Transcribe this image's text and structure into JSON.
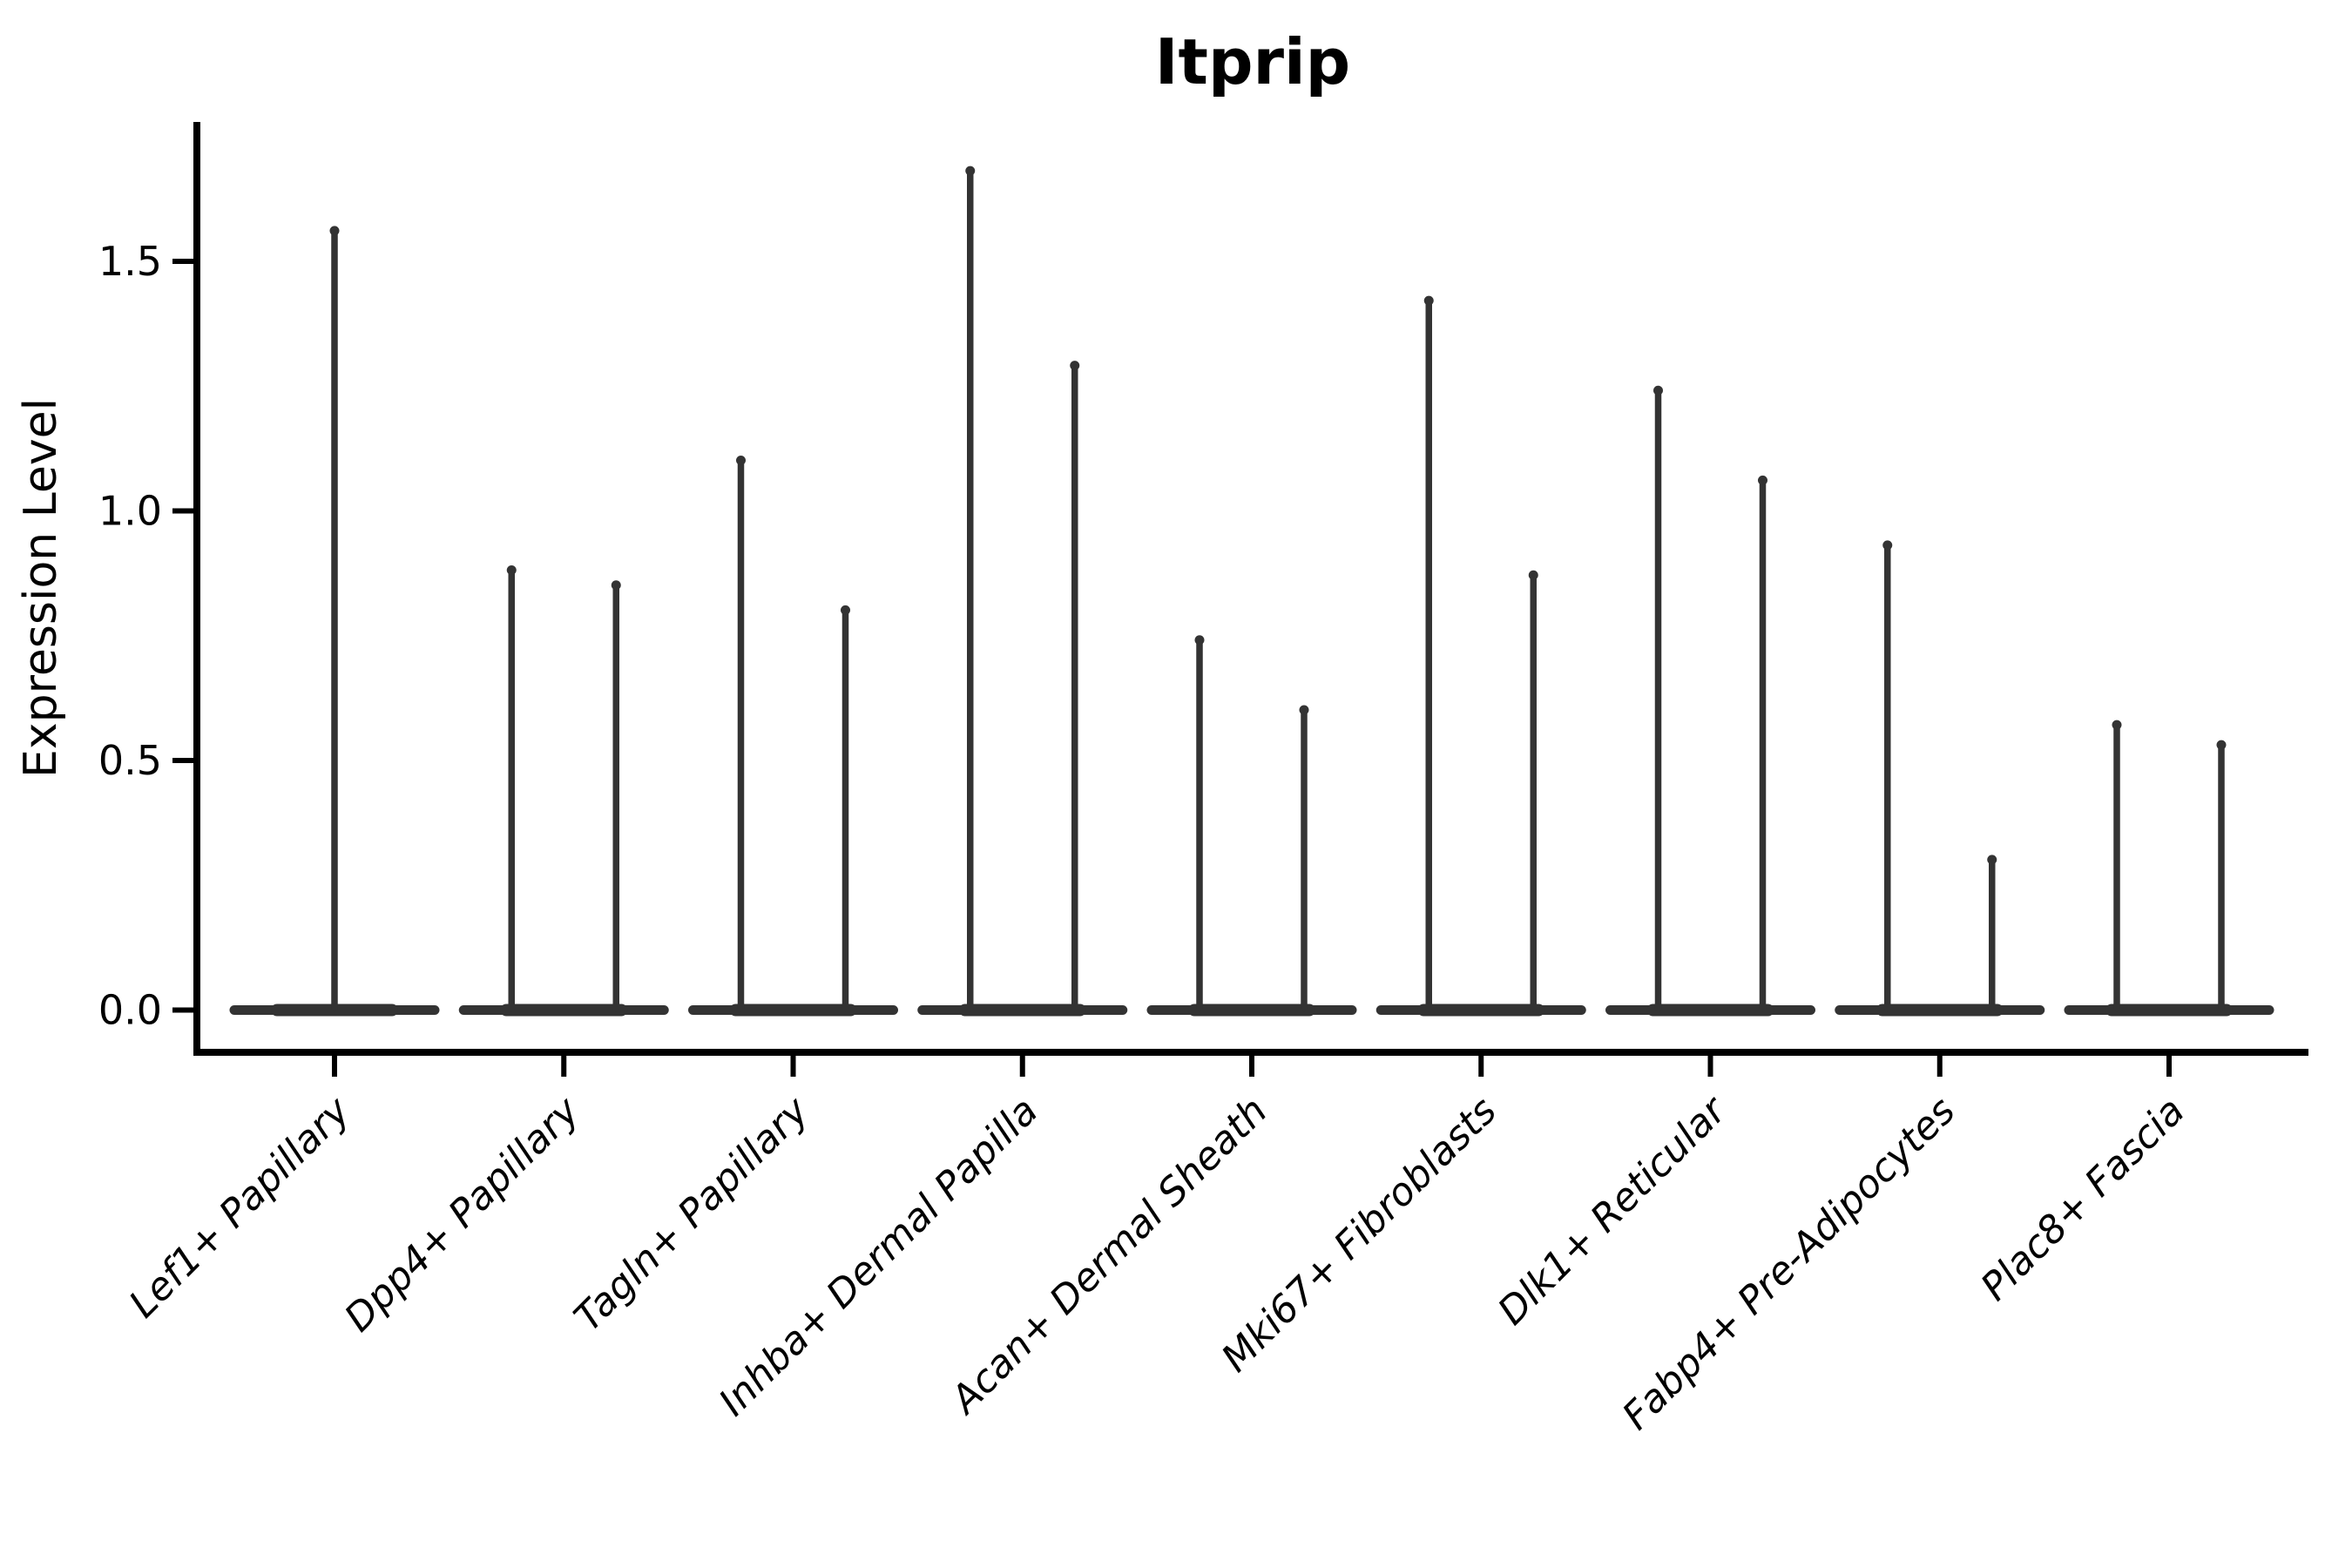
{
  "figure": {
    "title": "Itprip",
    "ylabel": "Expression Level",
    "background_color": "#ffffff",
    "axis_color": "#000000",
    "violin_color": "#333333"
  },
  "chart_data": {
    "type": "violin",
    "title": "Itprip",
    "xlabel": "",
    "ylabel": "Expression Level",
    "ylim": [
      0,
      1.78
    ],
    "yticks": [
      0.0,
      0.5,
      1.0,
      1.5
    ],
    "ytick_labels": [
      "0.0",
      "0.5",
      "1.0",
      "1.5"
    ],
    "grid": false,
    "legend_position": "none",
    "categories": [
      "Lef1+ Papillary",
      "Dpp4+ Papillary",
      "Tagln+ Papillary",
      "Inhba+ Dermal Papilla",
      "Acan+ Dermal Sheath",
      "Mki67+ Fibroblasts",
      "Dlk1+ Reticular",
      "Fabp4+ Pre-Adipocytes",
      "Plac8+ Fascia"
    ],
    "series": [
      {
        "category": "Lef1+ Papillary",
        "violin_max": [
          1.57
        ]
      },
      {
        "category": "Dpp4+ Papillary",
        "violin_max": [
          0.89,
          0.86
        ]
      },
      {
        "category": "Tagln+ Papillary",
        "violin_max": [
          1.11,
          0.81
        ]
      },
      {
        "category": "Inhba+ Dermal Papilla",
        "violin_max": [
          1.69,
          1.3
        ]
      },
      {
        "category": "Acan+ Dermal Sheath",
        "violin_max": [
          0.75,
          0.61
        ]
      },
      {
        "category": "Mki67+ Fibroblasts",
        "violin_max": [
          1.43,
          0.88
        ]
      },
      {
        "category": "Dlk1+ Reticular",
        "violin_max": [
          1.25,
          1.07
        ]
      },
      {
        "category": "Fabp4+ Pre-Adipocytes",
        "violin_max": [
          0.94,
          0.31
        ]
      },
      {
        "category": "Plac8+ Fascia",
        "violin_max": [
          0.58,
          0.54
        ]
      }
    ],
    "violin_style": "zero-inflated: wide flat base at 0 with thin spike rising to max expression"
  }
}
